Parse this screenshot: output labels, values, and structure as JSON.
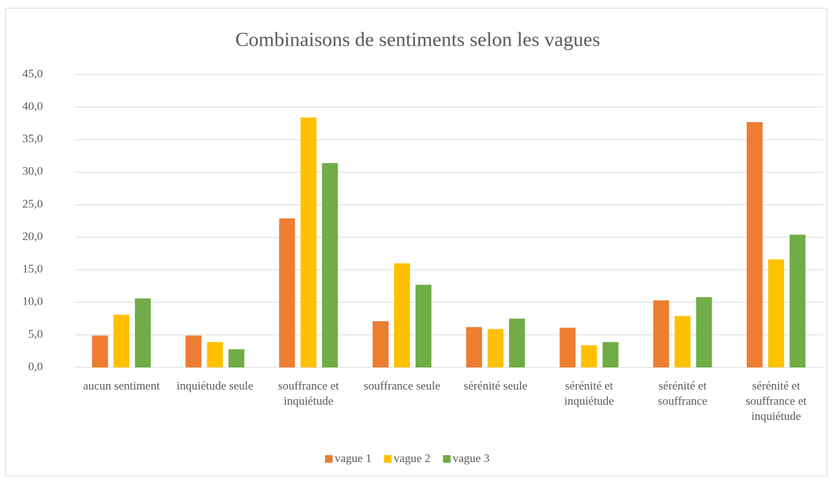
{
  "chart_data": {
    "type": "bar",
    "title": "Combinaisons de sentiments selon les vagues",
    "categories": [
      "aucun sentiment",
      "inquiétude seule",
      "souffrance et inquiétude",
      "souffrance seule",
      "sérénité seule",
      "sérénité et inquiétude",
      "sérénité et souffrance",
      "sérénité et souffrance et inquiétude"
    ],
    "series": [
      {
        "name": "vague 1",
        "color": "#ed7d31",
        "values": [
          4.9,
          4.9,
          22.9,
          7.1,
          6.2,
          6.1,
          10.3,
          37.7
        ]
      },
      {
        "name": "vague 2",
        "color": "#ffc000",
        "values": [
          8.1,
          3.9,
          38.4,
          16.0,
          5.9,
          3.4,
          7.9,
          16.6
        ]
      },
      {
        "name": "vague 3",
        "color": "#70ad47",
        "values": [
          10.6,
          2.8,
          31.4,
          12.7,
          7.5,
          3.9,
          10.8,
          20.4
        ]
      }
    ],
    "ylim": [
      0,
      45
    ],
    "yticks": [
      {
        "value": 0,
        "label": "0,0"
      },
      {
        "value": 5,
        "label": "5,0"
      },
      {
        "value": 10,
        "label": "10,0"
      },
      {
        "value": 15,
        "label": "15,0"
      },
      {
        "value": 20,
        "label": "20,0"
      },
      {
        "value": 25,
        "label": "25,0"
      },
      {
        "value": 30,
        "label": "30,0"
      },
      {
        "value": 35,
        "label": "35,0"
      },
      {
        "value": 40,
        "label": "40,0"
      },
      {
        "value": 45,
        "label": "45,0"
      }
    ],
    "grid": true,
    "legend": "bottom"
  }
}
